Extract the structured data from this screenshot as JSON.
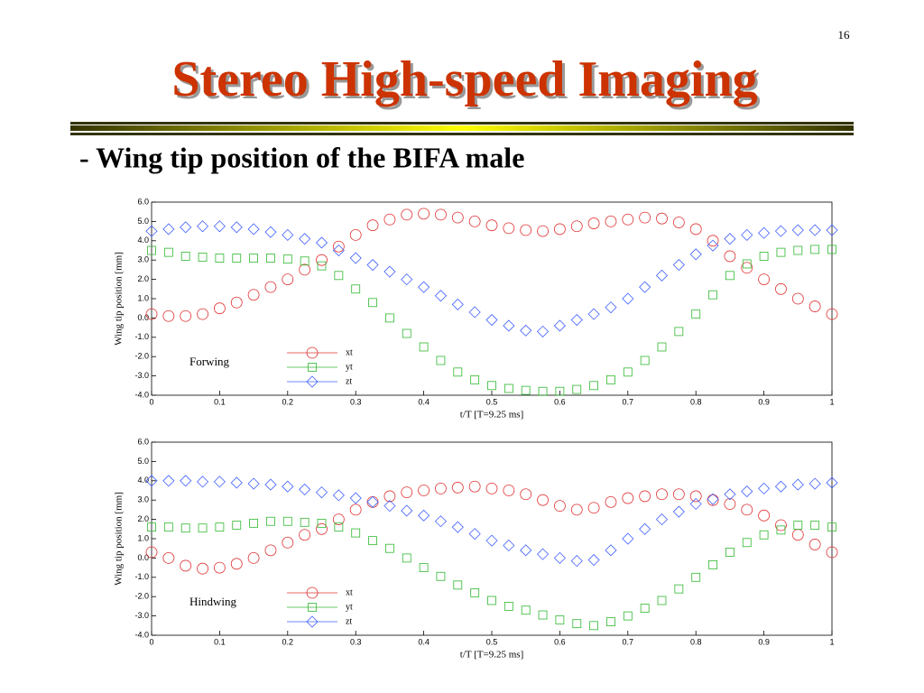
{
  "slide_number": "16",
  "title": "Stereo High-speed Imaging",
  "subtitle": "- Wing tip position of the BIFA male",
  "chart_data": [
    {
      "type": "scatter",
      "annotation": "Forwing",
      "xlabel": "t/T [T=9.25 ms]",
      "ylabel": "Wing tip position [mm]",
      "xlim": [
        0,
        1
      ],
      "ylim": [
        -4,
        6
      ],
      "xticks": [
        0,
        0.1,
        0.2,
        0.3,
        0.4,
        0.5,
        0.6,
        0.7,
        0.8,
        0.9,
        1
      ],
      "yticks": [
        {
          "value": -4,
          "label": "-4.0"
        },
        {
          "value": -3,
          "label": "-3.0"
        },
        {
          "value": -2,
          "label": "-2.0"
        },
        {
          "value": -1,
          "label": "-1.0"
        },
        {
          "value": 0,
          "label": "0.0"
        },
        {
          "value": 1,
          "label": "1.0"
        },
        {
          "value": 2,
          "label": "2.0"
        },
        {
          "value": 3,
          "label": "3.0"
        },
        {
          "value": 4,
          "label": "4.0"
        },
        {
          "value": 5,
          "label": "5.0"
        },
        {
          "value": 6,
          "label": "6.0"
        }
      ],
      "x": [
        0,
        0.025,
        0.05,
        0.075,
        0.1,
        0.125,
        0.15,
        0.175,
        0.2,
        0.225,
        0.25,
        0.275,
        0.3,
        0.325,
        0.35,
        0.375,
        0.4,
        0.425,
        0.45,
        0.475,
        0.5,
        0.525,
        0.55,
        0.575,
        0.6,
        0.625,
        0.65,
        0.675,
        0.7,
        0.725,
        0.75,
        0.775,
        0.8,
        0.825,
        0.85,
        0.875,
        0.9,
        0.925,
        0.95,
        0.975,
        1
      ],
      "series": [
        {
          "name": "xt",
          "color": "#e03030",
          "marker": "circle",
          "values": [
            0.2,
            0.1,
            0.1,
            0.2,
            0.5,
            0.8,
            1.2,
            1.6,
            2.0,
            2.5,
            3.0,
            3.7,
            4.3,
            4.8,
            5.1,
            5.35,
            5.4,
            5.35,
            5.2,
            5.0,
            4.8,
            4.65,
            4.55,
            4.5,
            4.6,
            4.75,
            4.9,
            5.0,
            5.1,
            5.2,
            5.15,
            4.95,
            4.6,
            4.0,
            3.2,
            2.6,
            2.0,
            1.5,
            1.0,
            0.6,
            0.2
          ]
        },
        {
          "name": "yt",
          "color": "#30b830",
          "marker": "square",
          "values": [
            3.5,
            3.4,
            3.2,
            3.15,
            3.1,
            3.1,
            3.1,
            3.1,
            3.05,
            2.95,
            2.7,
            2.2,
            1.5,
            0.8,
            0.0,
            -0.8,
            -1.5,
            -2.2,
            -2.8,
            -3.2,
            -3.5,
            -3.65,
            -3.75,
            -3.8,
            -3.8,
            -3.7,
            -3.5,
            -3.2,
            -2.8,
            -2.2,
            -1.5,
            -0.7,
            0.2,
            1.2,
            2.2,
            2.8,
            3.2,
            3.4,
            3.5,
            3.55,
            3.55
          ]
        },
        {
          "name": "zt",
          "color": "#4060ff",
          "marker": "diamond",
          "values": [
            4.5,
            4.6,
            4.7,
            4.75,
            4.75,
            4.7,
            4.6,
            4.45,
            4.3,
            4.1,
            3.9,
            3.5,
            3.1,
            2.75,
            2.4,
            2.0,
            1.6,
            1.15,
            0.7,
            0.3,
            -0.1,
            -0.4,
            -0.65,
            -0.7,
            -0.4,
            -0.1,
            0.2,
            0.55,
            1.0,
            1.6,
            2.2,
            2.75,
            3.3,
            3.75,
            4.1,
            4.3,
            4.4,
            4.5,
            4.55,
            4.55,
            4.55
          ]
        }
      ]
    },
    {
      "type": "scatter",
      "annotation": "Hindwing",
      "xlabel": "t/T [T=9.25 ms]",
      "ylabel": "Wing tip position [mm]",
      "xlim": [
        0,
        1
      ],
      "ylim": [
        -4,
        6
      ],
      "xticks": [
        0,
        0.1,
        0.2,
        0.3,
        0.4,
        0.5,
        0.6,
        0.7,
        0.8,
        0.9,
        1
      ],
      "yticks": [
        {
          "value": -4,
          "label": "-4.0"
        },
        {
          "value": -3,
          "label": "-3.0"
        },
        {
          "value": -2,
          "label": "-2.0"
        },
        {
          "value": -1,
          "label": "-1.0"
        },
        {
          "value": 0,
          "label": "0.0"
        },
        {
          "value": 1,
          "label": "1.0"
        },
        {
          "value": 2,
          "label": "2.0"
        },
        {
          "value": 3,
          "label": "3.0"
        },
        {
          "value": 4,
          "label": "4.0"
        },
        {
          "value": 5,
          "label": "5.0"
        },
        {
          "value": 6,
          "label": "6.0"
        }
      ],
      "x": [
        0,
        0.025,
        0.05,
        0.075,
        0.1,
        0.125,
        0.15,
        0.175,
        0.2,
        0.225,
        0.25,
        0.275,
        0.3,
        0.325,
        0.35,
        0.375,
        0.4,
        0.425,
        0.45,
        0.475,
        0.5,
        0.525,
        0.55,
        0.575,
        0.6,
        0.625,
        0.65,
        0.675,
        0.7,
        0.725,
        0.75,
        0.775,
        0.8,
        0.825,
        0.85,
        0.875,
        0.9,
        0.925,
        0.95,
        0.975,
        1
      ],
      "series": [
        {
          "name": "xt",
          "color": "#e03030",
          "marker": "circle",
          "values": [
            0.3,
            0.0,
            -0.4,
            -0.55,
            -0.5,
            -0.3,
            0.0,
            0.4,
            0.8,
            1.2,
            1.5,
            2.0,
            2.5,
            2.9,
            3.2,
            3.4,
            3.5,
            3.6,
            3.65,
            3.7,
            3.6,
            3.5,
            3.3,
            3.0,
            2.7,
            2.5,
            2.6,
            2.9,
            3.1,
            3.2,
            3.3,
            3.3,
            3.2,
            3.0,
            2.8,
            2.5,
            2.2,
            1.7,
            1.2,
            0.7,
            0.3
          ]
        },
        {
          "name": "yt",
          "color": "#30b830",
          "marker": "square",
          "values": [
            1.6,
            1.6,
            1.55,
            1.55,
            1.6,
            1.7,
            1.8,
            1.9,
            1.9,
            1.85,
            1.8,
            1.6,
            1.3,
            0.9,
            0.5,
            0.0,
            -0.5,
            -0.95,
            -1.4,
            -1.8,
            -2.2,
            -2.5,
            -2.7,
            -2.95,
            -3.2,
            -3.4,
            -3.5,
            -3.3,
            -3.0,
            -2.6,
            -2.2,
            -1.6,
            -1.0,
            -0.35,
            0.3,
            0.8,
            1.2,
            1.45,
            1.7,
            1.7,
            1.6
          ]
        },
        {
          "name": "zt",
          "color": "#4060ff",
          "marker": "diamond",
          "values": [
            4.0,
            4.0,
            4.0,
            3.95,
            3.95,
            3.9,
            3.85,
            3.8,
            3.7,
            3.55,
            3.4,
            3.25,
            3.1,
            2.9,
            2.7,
            2.45,
            2.2,
            1.9,
            1.6,
            1.25,
            0.9,
            0.65,
            0.4,
            0.2,
            0.0,
            -0.15,
            -0.1,
            0.4,
            1.0,
            1.5,
            2.0,
            2.4,
            2.8,
            3.05,
            3.3,
            3.45,
            3.6,
            3.7,
            3.8,
            3.85,
            3.9
          ]
        }
      ]
    }
  ]
}
